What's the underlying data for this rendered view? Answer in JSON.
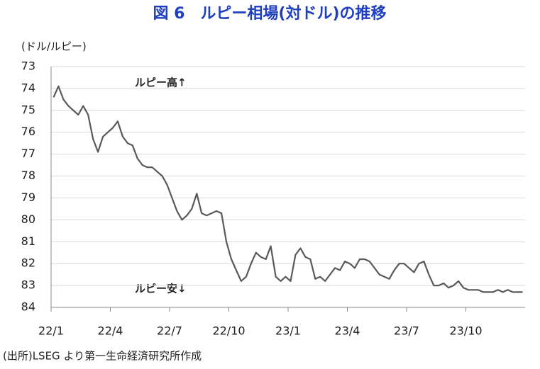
{
  "chart_data": {
    "type": "line",
    "title": "図 6　ルピー相場(対ドル)の推移",
    "y_label": "(ドル/ルピー)",
    "annotations": [
      "ルピー高↑",
      "ルピー安↓"
    ],
    "source": "(出所)LSEG より第一生命経済研究所作成",
    "categories": [
      "22/1",
      null,
      null,
      null,
      null,
      null,
      null,
      null,
      null,
      null,
      null,
      null,
      "22/4",
      null,
      null,
      null,
      null,
      null,
      null,
      null,
      null,
      null,
      null,
      null,
      "22/7",
      null,
      null,
      null,
      null,
      null,
      null,
      null,
      null,
      null,
      null,
      null,
      "22/10",
      null,
      null,
      null,
      null,
      null,
      null,
      null,
      null,
      null,
      null,
      null,
      "23/1",
      null,
      null,
      null,
      null,
      null,
      null,
      null,
      null,
      null,
      null,
      null,
      "23/4",
      null,
      null,
      null,
      null,
      null,
      null,
      null,
      null,
      null,
      null,
      null,
      "23/7",
      null,
      null,
      null,
      null,
      null,
      null,
      null,
      null,
      null,
      null,
      null,
      "23/10",
      null,
      null,
      null,
      null,
      null,
      null,
      null,
      null,
      null,
      null,
      null
    ],
    "values": [
      74.4,
      73.9,
      74.5,
      74.8,
      75.0,
      75.2,
      74.8,
      75.2,
      76.3,
      76.9,
      76.2,
      76.0,
      75.8,
      75.5,
      76.2,
      76.5,
      76.6,
      77.2,
      77.5,
      77.6,
      77.6,
      77.8,
      78.0,
      78.4,
      79.0,
      79.6,
      80.0,
      79.8,
      79.5,
      78.8,
      79.7,
      79.8,
      79.7,
      79.6,
      79.7,
      81.0,
      81.8,
      82.3,
      82.8,
      82.6,
      82.0,
      81.5,
      81.7,
      81.8,
      81.2,
      82.6,
      82.8,
      82.6,
      82.8,
      81.6,
      81.3,
      81.7,
      81.8,
      82.7,
      82.6,
      82.8,
      82.5,
      82.2,
      82.3,
      81.9,
      82.0,
      82.2,
      81.8,
      81.8,
      81.9,
      82.2,
      82.5,
      82.6,
      82.7,
      82.3,
      82.0,
      82.0,
      82.2,
      82.4,
      82.0,
      81.9,
      82.5,
      83.0,
      83.0,
      82.9,
      83.1,
      83.0,
      82.8,
      83.1,
      83.2,
      83.2,
      83.2,
      83.3,
      83.3,
      83.3,
      83.2,
      83.3,
      83.2,
      83.3,
      83.3,
      83.3
    ],
    "color": "#595959",
    "ylim": [
      84,
      73
    ],
    "yticks": [
      73,
      74,
      75,
      76,
      77,
      78,
      79,
      80,
      81,
      82,
      83,
      84
    ],
    "grid": true
  }
}
